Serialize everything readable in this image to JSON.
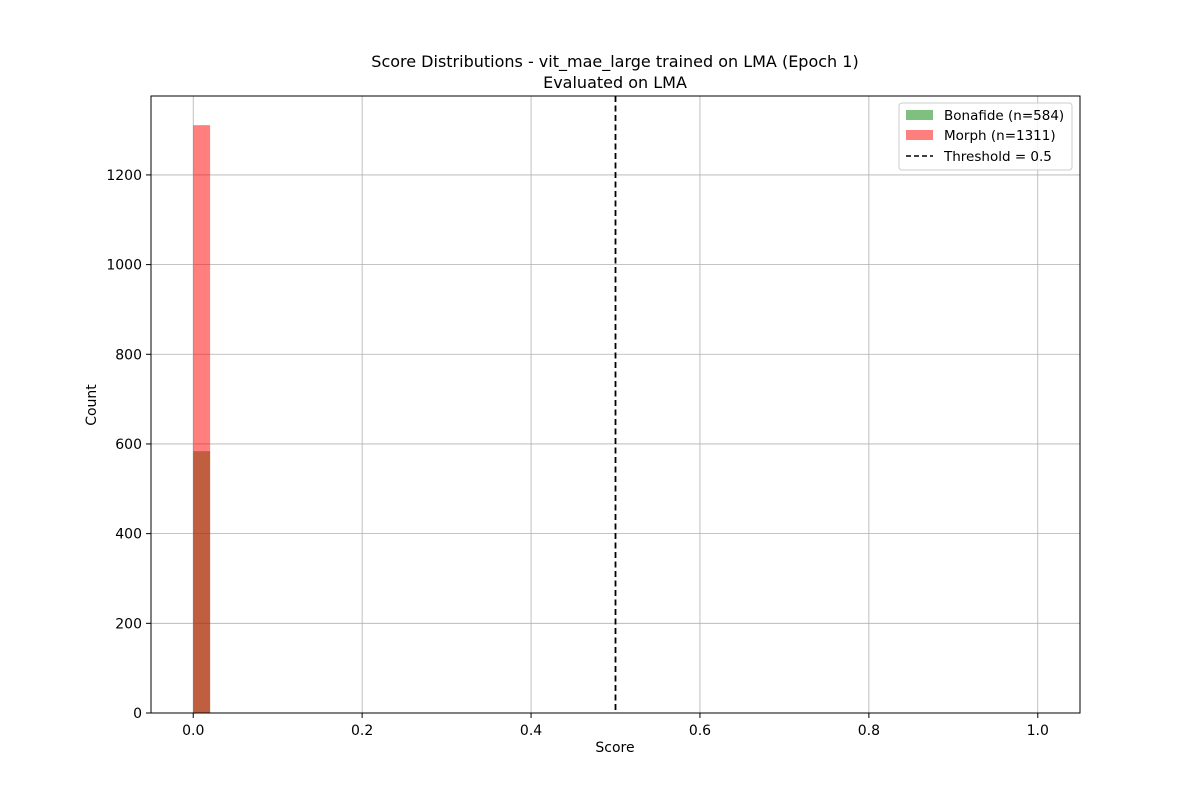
{
  "chart_data": {
    "type": "bar",
    "title": "Score Distributions - vit_mae_large trained on LMA (Epoch 1)",
    "subtitle": "Evaluated on LMA",
    "xlabel": "Score",
    "ylabel": "Count",
    "xlim": [
      -0.05,
      1.05
    ],
    "ylim": [
      0,
      1376
    ],
    "x_ticks": [
      0.0,
      0.2,
      0.4,
      0.6,
      0.8,
      1.0
    ],
    "x_tick_labels": [
      "0.0",
      "0.2",
      "0.4",
      "0.6",
      "0.8",
      "1.0"
    ],
    "y_ticks": [
      0,
      200,
      400,
      600,
      800,
      1000,
      1200
    ],
    "y_tick_labels": [
      "0",
      "200",
      "400",
      "600",
      "800",
      "1000",
      "1200"
    ],
    "grid": true,
    "legend_position": "top-right",
    "series": [
      {
        "name": "Bonafide (n=584)",
        "color": "#008000",
        "opacity": 0.5,
        "bins": [
          {
            "x0": 0.0,
            "x1": 0.02,
            "value": 584
          }
        ]
      },
      {
        "name": "Morph (n=1311)",
        "color": "#ff0000",
        "opacity": 0.5,
        "bins": [
          {
            "x0": 0.0,
            "x1": 0.02,
            "value": 1311
          }
        ]
      }
    ],
    "threshold": {
      "name": "Threshold = 0.5",
      "value": 0.5,
      "color": "#000000",
      "style": "dashed"
    }
  }
}
